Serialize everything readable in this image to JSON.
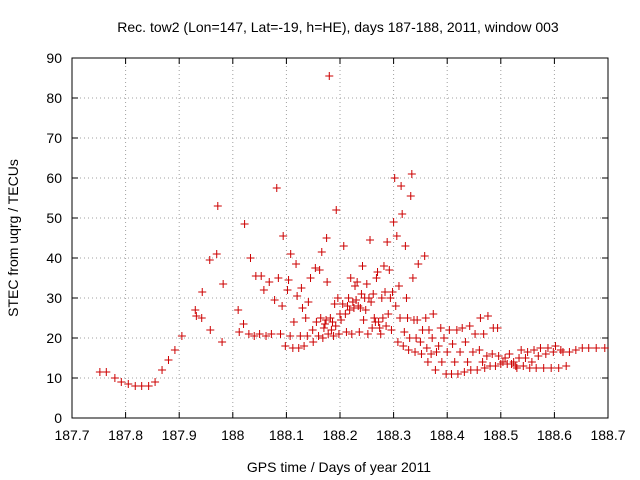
{
  "chart_data": {
    "type": "scatter",
    "title": "Rec. tow2 (Lon=147, Lat=-19, h=HE), days 187-188, 2011, window 003",
    "xlabel": "GPS time / Days of year 2011",
    "ylabel": "STEC from uqrg / TECUs",
    "xlim": [
      187.7,
      188.7
    ],
    "ylim": [
      0,
      90
    ],
    "x_ticks": [
      187.7,
      187.8,
      187.9,
      188,
      188.1,
      188.2,
      188.3,
      188.4,
      188.5,
      188.6,
      188.7
    ],
    "x_tick_labels": [
      "187.7",
      "187.8",
      "187.9",
      "188",
      "188.1",
      "188.2",
      "188.3",
      "188.4",
      "188.5",
      "188.6",
      "188.7"
    ],
    "y_ticks": [
      0,
      10,
      20,
      30,
      40,
      50,
      60,
      70,
      80,
      90
    ],
    "y_tick_labels": [
      "0",
      "10",
      "20",
      "30",
      "40",
      "50",
      "60",
      "70",
      "80",
      "90"
    ],
    "grid": true,
    "marker": "+",
    "color": "#cc0000",
    "points": [
      [
        187.752,
        11.5
      ],
      [
        187.764,
        11.5
      ],
      [
        187.78,
        10
      ],
      [
        187.792,
        9
      ],
      [
        187.805,
        8.5
      ],
      [
        187.818,
        8
      ],
      [
        187.83,
        8
      ],
      [
        187.843,
        8
      ],
      [
        187.855,
        9
      ],
      [
        187.868,
        12
      ],
      [
        187.88,
        14.5
      ],
      [
        187.892,
        17
      ],
      [
        187.905,
        20.5
      ],
      [
        187.93,
        27
      ],
      [
        187.932,
        25.5
      ],
      [
        187.942,
        25
      ],
      [
        187.943,
        31.5
      ],
      [
        187.957,
        39.5
      ],
      [
        187.958,
        22
      ],
      [
        187.97,
        41
      ],
      [
        187.972,
        53
      ],
      [
        187.98,
        19
      ],
      [
        187.982,
        33.5
      ],
      [
        188.01,
        27
      ],
      [
        188.012,
        21.5
      ],
      [
        188.02,
        23.5
      ],
      [
        188.022,
        48.5
      ],
      [
        188.03,
        21
      ],
      [
        188.033,
        40
      ],
      [
        188.04,
        20.5
      ],
      [
        188.043,
        35.5
      ],
      [
        188.05,
        21
      ],
      [
        188.053,
        35.5
      ],
      [
        188.058,
        32
      ],
      [
        188.062,
        20.5
      ],
      [
        188.068,
        34
      ],
      [
        188.072,
        21
      ],
      [
        188.078,
        29.5
      ],
      [
        188.082,
        57.5
      ],
      [
        188.085,
        35
      ],
      [
        188.089,
        21
      ],
      [
        188.092,
        28
      ],
      [
        188.094,
        45.5
      ],
      [
        188.098,
        18
      ],
      [
        188.102,
        32
      ],
      [
        188.104,
        34.5
      ],
      [
        188.107,
        20.5
      ],
      [
        188.108,
        41
      ],
      [
        188.112,
        17.5
      ],
      [
        188.114,
        24
      ],
      [
        188.118,
        38.5
      ],
      [
        188.12,
        30.5
      ],
      [
        188.123,
        17.5
      ],
      [
        188.126,
        20.5
      ],
      [
        188.128,
        32.5
      ],
      [
        188.13,
        27.5
      ],
      [
        188.133,
        18
      ],
      [
        188.136,
        25
      ],
      [
        188.139,
        20.5
      ],
      [
        188.141,
        29
      ],
      [
        188.145,
        35
      ],
      [
        188.149,
        22
      ],
      [
        188.15,
        19
      ],
      [
        188.154,
        37.5
      ],
      [
        188.156,
        24
      ],
      [
        188.16,
        20.5
      ],
      [
        188.162,
        37
      ],
      [
        188.164,
        25
      ],
      [
        188.166,
        41.5
      ],
      [
        188.168,
        20
      ],
      [
        188.17,
        22.5
      ],
      [
        188.172,
        23.5
      ],
      [
        188.174,
        24.5
      ],
      [
        188.175,
        45
      ],
      [
        188.176,
        34
      ],
      [
        188.178,
        21
      ],
      [
        188.18,
        85.5
      ],
      [
        188.182,
        25
      ],
      [
        188.184,
        22
      ],
      [
        188.186,
        24
      ],
      [
        188.188,
        20.5
      ],
      [
        188.19,
        28.5
      ],
      [
        188.192,
        23
      ],
      [
        188.193,
        52
      ],
      [
        188.196,
        30
      ],
      [
        188.198,
        21
      ],
      [
        188.2,
        26
      ],
      [
        188.202,
        24.5
      ],
      [
        188.205,
        28.5
      ],
      [
        188.207,
        43
      ],
      [
        188.21,
        26
      ],
      [
        188.212,
        21.5
      ],
      [
        188.214,
        28
      ],
      [
        188.216,
        30
      ],
      [
        188.218,
        27
      ],
      [
        188.22,
        35
      ],
      [
        188.222,
        21
      ],
      [
        188.224,
        29
      ],
      [
        188.226,
        27.5
      ],
      [
        188.228,
        33
      ],
      [
        188.23,
        29.5
      ],
      [
        188.232,
        34
      ],
      [
        188.234,
        28
      ],
      [
        188.236,
        21.5
      ],
      [
        188.238,
        27.5
      ],
      [
        188.24,
        31
      ],
      [
        188.242,
        38
      ],
      [
        188.244,
        24.5
      ],
      [
        188.246,
        30
      ],
      [
        188.248,
        27
      ],
      [
        188.25,
        33.5
      ],
      [
        188.252,
        21
      ],
      [
        188.254,
        30
      ],
      [
        188.256,
        44.5
      ],
      [
        188.258,
        29
      ],
      [
        188.26,
        22.5
      ],
      [
        188.262,
        31
      ],
      [
        188.264,
        25
      ],
      [
        188.266,
        24
      ],
      [
        188.268,
        35
      ],
      [
        188.27,
        36.5
      ],
      [
        188.272,
        24
      ],
      [
        188.274,
        22.5
      ],
      [
        188.276,
        21
      ],
      [
        188.278,
        30
      ],
      [
        188.28,
        25
      ],
      [
        188.282,
        38
      ],
      [
        188.284,
        31.5
      ],
      [
        188.286,
        23
      ],
      [
        188.288,
        44
      ],
      [
        188.29,
        26
      ],
      [
        188.292,
        37
      ],
      [
        188.294,
        30
      ],
      [
        188.296,
        22
      ],
      [
        188.298,
        31.5
      ],
      [
        188.3,
        49
      ],
      [
        188.302,
        60
      ],
      [
        188.304,
        28
      ],
      [
        188.306,
        45.5
      ],
      [
        188.308,
        19
      ],
      [
        188.31,
        33
      ],
      [
        188.312,
        25
      ],
      [
        188.314,
        58
      ],
      [
        188.316,
        51
      ],
      [
        188.318,
        18
      ],
      [
        188.32,
        21.5
      ],
      [
        188.322,
        43
      ],
      [
        188.324,
        30
      ],
      [
        188.326,
        25
      ],
      [
        188.328,
        17
      ],
      [
        188.33,
        20
      ],
      [
        188.332,
        55.5
      ],
      [
        188.334,
        61
      ],
      [
        188.336,
        35
      ],
      [
        188.338,
        24.5
      ],
      [
        188.34,
        16.5
      ],
      [
        188.342,
        20
      ],
      [
        188.344,
        24.5
      ],
      [
        188.346,
        38.5
      ],
      [
        188.35,
        19
      ],
      [
        188.352,
        16
      ],
      [
        188.354,
        22
      ],
      [
        188.358,
        40.5
      ],
      [
        188.36,
        25
      ],
      [
        188.362,
        17.5
      ],
      [
        188.364,
        14
      ],
      [
        188.366,
        22
      ],
      [
        188.37,
        16
      ],
      [
        188.372,
        20
      ],
      [
        188.374,
        26
      ],
      [
        188.378,
        12
      ],
      [
        188.38,
        16.5
      ],
      [
        188.384,
        18
      ],
      [
        188.388,
        22.5
      ],
      [
        188.39,
        14
      ],
      [
        188.394,
        20
      ],
      [
        188.398,
        11
      ],
      [
        188.4,
        16.5
      ],
      [
        188.404,
        22
      ],
      [
        188.408,
        11
      ],
      [
        188.41,
        18.5
      ],
      [
        188.414,
        14
      ],
      [
        188.418,
        22
      ],
      [
        188.42,
        11
      ],
      [
        188.424,
        16.5
      ],
      [
        188.428,
        22.5
      ],
      [
        188.432,
        11.5
      ],
      [
        188.434,
        19
      ],
      [
        188.438,
        14
      ],
      [
        188.442,
        23
      ],
      [
        188.444,
        12
      ],
      [
        188.448,
        16.5
      ],
      [
        188.452,
        21
      ],
      [
        188.456,
        12
      ],
      [
        188.46,
        17
      ],
      [
        188.462,
        25
      ],
      [
        188.466,
        14
      ],
      [
        188.468,
        21
      ],
      [
        188.47,
        12.5
      ],
      [
        188.474,
        15.5
      ],
      [
        188.476,
        25.5
      ],
      [
        188.48,
        13
      ],
      [
        188.484,
        16
      ],
      [
        188.486,
        22.5
      ],
      [
        188.49,
        13
      ],
      [
        188.494,
        22.5
      ],
      [
        188.496,
        15.5
      ],
      [
        188.5,
        13.5
      ],
      [
        188.504,
        14
      ],
      [
        188.508,
        15
      ],
      [
        188.512,
        13.5
      ],
      [
        188.516,
        16
      ],
      [
        188.52,
        13.5
      ],
      [
        188.524,
        14
      ],
      [
        188.528,
        13
      ],
      [
        188.53,
        12.5
      ],
      [
        188.534,
        15
      ],
      [
        188.538,
        17
      ],
      [
        188.542,
        13
      ],
      [
        188.546,
        15
      ],
      [
        188.55,
        16.5
      ],
      [
        188.554,
        12.5
      ],
      [
        188.558,
        14
      ],
      [
        188.562,
        17
      ],
      [
        188.566,
        12.5
      ],
      [
        188.57,
        15.5
      ],
      [
        188.574,
        17.5
      ],
      [
        188.58,
        12.5
      ],
      [
        188.584,
        16
      ],
      [
        188.588,
        17.5
      ],
      [
        188.594,
        12.5
      ],
      [
        188.598,
        16.5
      ],
      [
        188.602,
        18
      ],
      [
        188.608,
        12.5
      ],
      [
        188.612,
        17
      ],
      [
        188.616,
        16.5
      ],
      [
        188.622,
        13
      ],
      [
        188.628,
        16.5
      ],
      [
        188.64,
        17
      ],
      [
        188.652,
        17.5
      ],
      [
        188.664,
        17.5
      ],
      [
        188.678,
        17.5
      ],
      [
        188.694,
        17.5
      ]
    ]
  }
}
